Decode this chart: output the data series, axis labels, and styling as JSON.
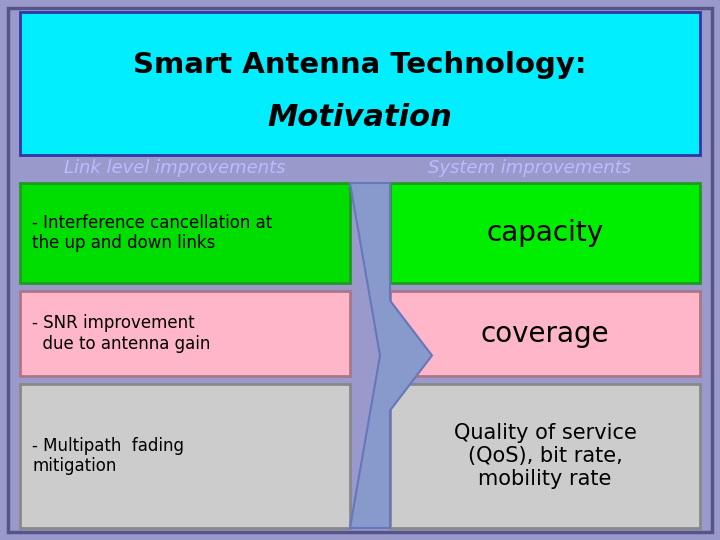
{
  "title_line1": "Smart Antenna Technology:",
  "title_line2": "Motivation",
  "title_bg": "#00EEFF",
  "outer_bg": "#9999CC",
  "header_left": "Link level improvements",
  "header_right": "System improvements",
  "header_color": "#BBBBFF",
  "row1_left_text": "- Interference cancellation at\nthe up and down links",
  "row1_left_bg": "#00DD00",
  "row1_right_text": "capacity",
  "row1_right_bg": "#00EE00",
  "row2_left_text": "- SNR improvement\n  due to antenna gain",
  "row2_left_bg": "#FFB6C8",
  "row2_right_text": "coverage",
  "row2_right_bg": "#FFB6C8",
  "row3_left_text": "- Multipath  fading\nmitigation",
  "row3_left_bg": "#CCCCCC",
  "row3_right_text": "Quality of service\n(QoS), bit rate,\nmobility rate",
  "row3_right_bg": "#CCCCCC",
  "arrow_color": "#8899CC",
  "text_color": "#000000",
  "title_text_color": "#000000"
}
